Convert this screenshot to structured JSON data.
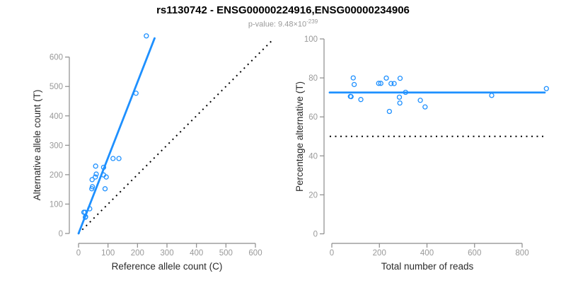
{
  "title": "rs1130742 - ENSG00000224916,ENSG00000234906",
  "subtitle": {
    "prefix": "p-value: 9.48×10",
    "exponent": "-239"
  },
  "colors": {
    "accent_blue": "#1E90FF",
    "axis_gray": "#8c8c8c",
    "tick_label_gray": "#999999",
    "axis_title_dark": "#2b2b2b",
    "title_black": "#000000",
    "reference_black": "#000000",
    "background": "#ffffff"
  },
  "chart_data": [
    {
      "type": "scatter",
      "panel": "left",
      "xlabel": "Reference allele count (C)",
      "ylabel": "Alternative allele count (T)",
      "xlim": [
        0,
        600
      ],
      "ylim": [
        0,
        600
      ],
      "xticks": [
        0,
        100,
        200,
        300,
        400,
        500,
        600
      ],
      "xtick_labels": [
        "0",
        "100",
        "200",
        "300",
        "400",
        "500",
        "600"
      ],
      "yticks": [
        0,
        100,
        200,
        300,
        400,
        500,
        600
      ],
      "ytick_labels": [
        "0",
        "100",
        "200",
        "300",
        "400",
        "500",
        "600"
      ],
      "point_style": "open-circle",
      "points": [
        [
          18,
          72
        ],
        [
          22,
          72
        ],
        [
          23,
          55
        ],
        [
          24,
          57
        ],
        [
          38,
          84
        ],
        [
          45,
          152
        ],
        [
          47,
          159
        ],
        [
          46,
          183
        ],
        [
          90,
          152
        ],
        [
          57,
          192
        ],
        [
          60,
          202
        ],
        [
          85,
          199
        ],
        [
          58,
          229
        ],
        [
          94,
          192
        ],
        [
          85,
          225
        ],
        [
          117,
          255
        ],
        [
          137,
          255
        ],
        [
          195,
          477
        ],
        [
          230,
          672
        ]
      ],
      "fit_line": {
        "x1": 0,
        "y1": 0,
        "x2": 258,
        "y2": 664,
        "style": "solid",
        "meaning": "regression fit"
      },
      "reference_line": {
        "x1": 0,
        "y1": 0,
        "x2": 661,
        "y2": 661,
        "style": "dotted",
        "meaning": "identity y=x"
      },
      "grid": false,
      "legend": "none"
    },
    {
      "type": "scatter",
      "panel": "right",
      "xlabel": "Total number of reads",
      "ylabel": "Percentage alternative (T)",
      "xlim": [
        0,
        900
      ],
      "ylim": [
        0,
        100
      ],
      "xticks": [
        0,
        200,
        400,
        600,
        800
      ],
      "xtick_labels": [
        "0",
        "200",
        "400",
        "600",
        "800"
      ],
      "yticks": [
        0,
        20,
        40,
        60,
        80,
        100
      ],
      "ytick_labels": [
        "0",
        "20",
        "40",
        "60",
        "80",
        "100"
      ],
      "point_style": "open-circle",
      "points": [
        [
          90,
          80.0
        ],
        [
          94,
          76.6
        ],
        [
          78,
          70.5
        ],
        [
          81,
          70.4
        ],
        [
          122,
          68.9
        ],
        [
          197,
          77.2
        ],
        [
          206,
          77.2
        ],
        [
          229,
          79.9
        ],
        [
          242,
          62.8
        ],
        [
          249,
          77.1
        ],
        [
          262,
          77.1
        ],
        [
          284,
          70.1
        ],
        [
          287,
          79.8
        ],
        [
          286,
          67.1
        ],
        [
          310,
          72.6
        ],
        [
          372,
          68.5
        ],
        [
          392,
          65.1
        ],
        [
          672,
          71.0
        ],
        [
          902,
          74.5
        ]
      ],
      "fit_line": {
        "x1": -9,
        "y1": 72.5,
        "x2": 895,
        "y2": 72.5,
        "style": "solid",
        "meaning": "mean percentage fit"
      },
      "reference_line": {
        "x1": -9,
        "y1": 50,
        "x2": 889,
        "y2": 50,
        "style": "dotted",
        "meaning": "50% reference"
      },
      "grid": false,
      "legend": "none"
    }
  ]
}
